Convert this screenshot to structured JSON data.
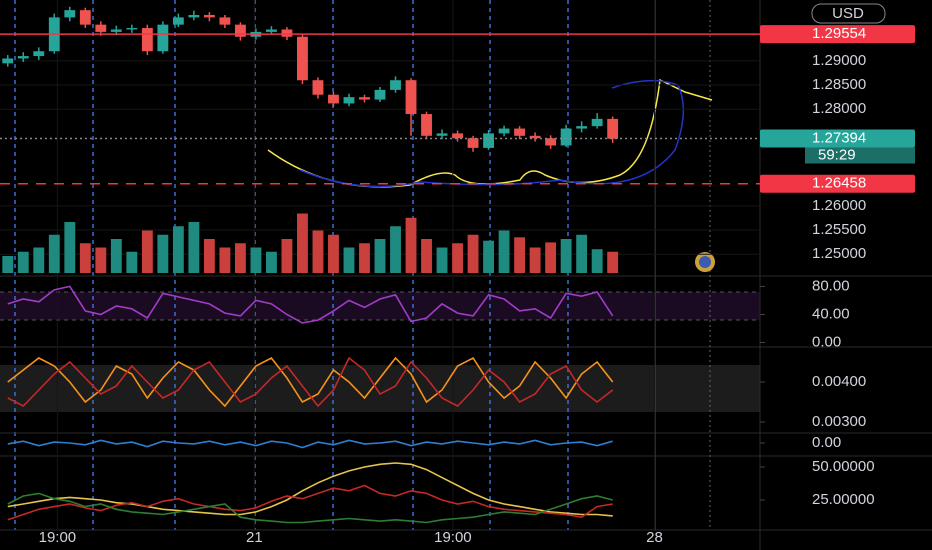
{
  "chart_data": [
    {
      "type": "candlestick",
      "currency": "USD",
      "countdown": "59:29",
      "up_color": "#26a69a",
      "down_color": "#ef5350",
      "grid": true,
      "open": [
        1.2895,
        1.2905,
        1.291,
        1.292,
        1.299,
        1.3005,
        1.2975,
        1.296,
        1.2965,
        1.2968,
        1.292,
        1.2975,
        1.299,
        1.2995,
        1.299,
        1.2975,
        1.295,
        1.296,
        1.2965,
        1.295,
        1.286,
        1.283,
        1.2812,
        1.2825,
        1.282,
        1.284,
        1.286,
        1.279,
        1.2745,
        1.275,
        1.274,
        1.272,
        1.275,
        1.276,
        1.2745,
        1.274,
        1.2725,
        1.276,
        1.2765,
        1.278
      ],
      "high": [
        1.2912,
        1.2918,
        1.2928,
        1.2998,
        1.3012,
        1.301,
        1.2982,
        1.2973,
        1.2975,
        1.2975,
        1.2982,
        1.2998,
        1.3004,
        1.3001,
        1.2995,
        1.298,
        1.2967,
        1.2972,
        1.297,
        1.2955,
        1.2866,
        1.2836,
        1.2832,
        1.283,
        1.2846,
        1.2868,
        1.2864,
        1.2795,
        1.2758,
        1.2756,
        1.2745,
        1.2757,
        1.2766,
        1.2765,
        1.2752,
        1.2746,
        1.2768,
        1.2775,
        1.2792,
        1.2785
      ],
      "low": [
        1.2888,
        1.2898,
        1.2902,
        1.2915,
        1.2982,
        1.2968,
        1.2952,
        1.2953,
        1.2958,
        1.2912,
        1.2915,
        1.297,
        1.2984,
        1.2982,
        1.2968,
        1.2942,
        1.2944,
        1.2955,
        1.2943,
        1.2852,
        1.2822,
        1.2805,
        1.2806,
        1.2814,
        1.2815,
        1.2834,
        1.2745,
        1.2738,
        1.2738,
        1.2733,
        1.2712,
        1.2716,
        1.2744,
        1.2738,
        1.2733,
        1.2718,
        1.2722,
        1.2752,
        1.276,
        1.273
      ],
      "close": [
        1.2905,
        1.291,
        1.292,
        1.299,
        1.3005,
        1.2975,
        1.296,
        1.2965,
        1.2968,
        1.292,
        1.2975,
        1.299,
        1.2995,
        1.299,
        1.2975,
        1.295,
        1.296,
        1.2965,
        1.295,
        1.286,
        1.283,
        1.2812,
        1.2825,
        1.282,
        1.284,
        1.286,
        1.279,
        1.2745,
        1.275,
        1.274,
        1.272,
        1.275,
        1.276,
        1.2745,
        1.274,
        1.2725,
        1.276,
        1.2765,
        1.278,
        1.2739
      ],
      "xlim": [
        -0.5,
        48.5
      ],
      "xticks": [
        {
          "value": 3.2,
          "label": "19:00"
        },
        {
          "value": 15.9,
          "label": "21"
        },
        {
          "value": 28.7,
          "label": "19:00"
        },
        {
          "value": 41.7,
          "label": "28"
        }
      ],
      "ylim": [
        1.2457,
        1.3026
      ],
      "yticks": [
        {
          "value": 1.29,
          "label": "1.29000"
        },
        {
          "value": 1.285,
          "label": "1.28500"
        },
        {
          "value": 1.28,
          "label": "1.28000"
        },
        {
          "value": 1.26,
          "label": "1.26000"
        },
        {
          "value": 1.255,
          "label": "1.25500"
        },
        {
          "value": 1.25,
          "label": "1.25000"
        }
      ],
      "price_lines": [
        {
          "value": 1.29554,
          "color": "#f23645",
          "style": "solid"
        },
        {
          "value": 1.27394,
          "color": "#26a69a",
          "style": "dotted"
        },
        {
          "value": 1.26458,
          "color": "#f23645",
          "style": "dashed"
        }
      ]
    },
    {
      "type": "bar",
      "ylim": [
        0,
        80
      ],
      "values": [
        20,
        25,
        30,
        45,
        60,
        35,
        30,
        40,
        25,
        50,
        45,
        55,
        60,
        40,
        30,
        35,
        30,
        25,
        40,
        70,
        50,
        45,
        30,
        35,
        40,
        55,
        65,
        40,
        30,
        35,
        45,
        38,
        50,
        42,
        30,
        36,
        40,
        45,
        28,
        25
      ]
    },
    {
      "type": "line",
      "ylim": [
        -5,
        92
      ],
      "yticks": [
        {
          "value": 80,
          "label": "80.00"
        },
        {
          "value": 40,
          "label": "40.00"
        },
        {
          "value": 0,
          "label": "0.00"
        }
      ],
      "series": [
        {
          "color": "#a23cc8",
          "values": [
            55,
            62,
            58,
            75,
            80,
            45,
            40,
            52,
            48,
            35,
            70,
            65,
            60,
            55,
            42,
            38,
            60,
            55,
            40,
            28,
            32,
            45,
            60,
            50,
            62,
            68,
            30,
            35,
            55,
            42,
            38,
            68,
            62,
            45,
            48,
            35,
            70,
            66,
            72,
            38
          ]
        }
      ]
    },
    {
      "type": "line",
      "ylim": [
        0.00275,
        0.00485
      ],
      "yticks": [
        {
          "value": 0.004,
          "label": "0.00400"
        },
        {
          "value": 0.003,
          "label": "0.00300"
        }
      ],
      "series": [
        {
          "color": "#f7931a",
          "values": [
            0.004,
            0.0043,
            0.0046,
            0.0044,
            0.004,
            0.0035,
            0.0038,
            0.0044,
            0.0042,
            0.0036,
            0.0041,
            0.0045,
            0.0043,
            0.0038,
            0.0034,
            0.0039,
            0.0044,
            0.0046,
            0.0041,
            0.0035,
            0.0037,
            0.0043,
            0.004,
            0.0036,
            0.0041,
            0.0046,
            0.0042,
            0.0035,
            0.0038,
            0.0044,
            0.0046,
            0.004,
            0.0036,
            0.0039,
            0.0045,
            0.0041,
            0.0036,
            0.0042,
            0.0045,
            0.004
          ]
        },
        {
          "color": "#c62828",
          "values": [
            0.0036,
            0.0034,
            0.0038,
            0.0042,
            0.0045,
            0.0041,
            0.0037,
            0.0039,
            0.0044,
            0.004,
            0.0036,
            0.0038,
            0.0043,
            0.0045,
            0.004,
            0.0035,
            0.0037,
            0.0041,
            0.0044,
            0.0039,
            0.0034,
            0.0038,
            0.0046,
            0.0043,
            0.0037,
            0.0039,
            0.0045,
            0.0041,
            0.0036,
            0.0034,
            0.0038,
            0.0043,
            0.004,
            0.0035,
            0.0037,
            0.0042,
            0.0044,
            0.0038,
            0.0035,
            0.0038
          ]
        }
      ]
    },
    {
      "type": "line",
      "ylim": [
        -1,
        1
      ],
      "yticks": [
        {
          "value": 0,
          "label": "0.00"
        }
      ],
      "series": [
        {
          "color": "#2f7fd1",
          "values": [
            -0.1,
            0.2,
            -0.3,
            0.1,
            0,
            -0.2,
            0.3,
            -0.1,
            0.1,
            -0.4,
            0.2,
            0,
            -0.1,
            0.2,
            -0.2,
            0.1,
            -0.3,
            0.2,
            0,
            -0.5,
            0.1,
            -0.2,
            0.3,
            -0.1,
            0,
            0.2,
            -0.3,
            0.1,
            -0.1,
            0.2,
            0,
            -0.2,
            0.1,
            -0.1,
            0.3,
            -0.2,
            0,
            0.1,
            -0.3,
            0.2
          ]
        }
      ]
    },
    {
      "type": "line",
      "ylim": [
        2.3,
        56.8
      ],
      "yticks": [
        {
          "value": 50,
          "label": "50.00000"
        },
        {
          "value": 25,
          "label": "25.00000"
        }
      ],
      "series": [
        {
          "color": "#e6c34a",
          "values": [
            20,
            22,
            24,
            26,
            27,
            26,
            25,
            23,
            22,
            20,
            18,
            17,
            16,
            15,
            14,
            14,
            16,
            20,
            25,
            32,
            38,
            43,
            47,
            50,
            52,
            53,
            52,
            48,
            42,
            36,
            30,
            25,
            22,
            20,
            18,
            16,
            15,
            14,
            14,
            13
          ]
        },
        {
          "color": "#c62828",
          "values": [
            10,
            14,
            18,
            20,
            22,
            19,
            17,
            21,
            23,
            20,
            24,
            26,
            22,
            20,
            18,
            17,
            19,
            24,
            28,
            26,
            30,
            34,
            32,
            36,
            30,
            28,
            32,
            30,
            25,
            22,
            24,
            20,
            18,
            17,
            16,
            15,
            14,
            12,
            20,
            22
          ]
        },
        {
          "color": "#2e7d32",
          "values": [
            22,
            28,
            30,
            26,
            24,
            20,
            22,
            18,
            16,
            15,
            14,
            16,
            18,
            20,
            22,
            12,
            10,
            9,
            8,
            8,
            9,
            10,
            11,
            10,
            9,
            10,
            9,
            8,
            10,
            11,
            12,
            14,
            16,
            15,
            14,
            18,
            22,
            26,
            28,
            25
          ]
        }
      ]
    }
  ]
}
